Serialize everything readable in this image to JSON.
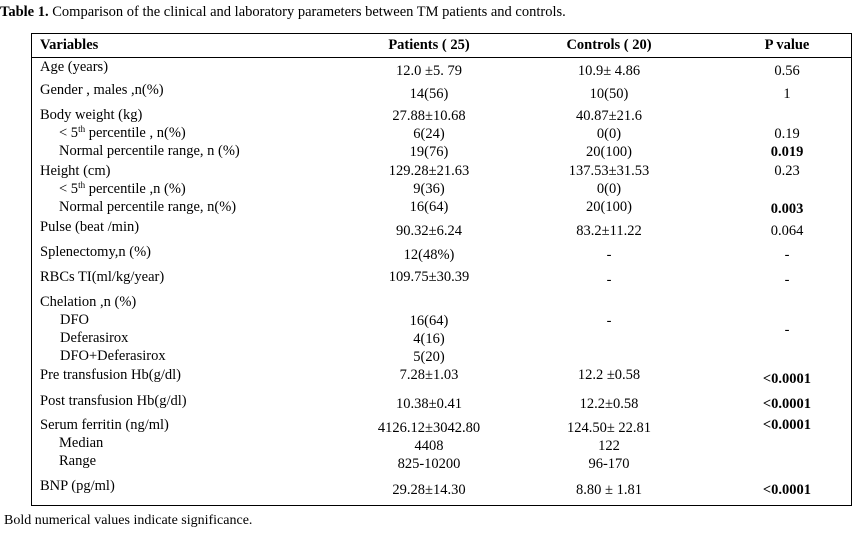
{
  "caption": {
    "label": "Table 1.",
    "text": " Comparison of the clinical and laboratory parameters between TM  patients and controls."
  },
  "headers": {
    "variables": "Variables",
    "patients": "Patients  ( 25)",
    "controls": "Controls ( 20)",
    "pvalue": "P value"
  },
  "rows": {
    "age": {
      "label": "Age (years)",
      "patients": "12.0  ±5. 79",
      "controls": "10.9± 4.86",
      "p": "0.56"
    },
    "gender": {
      "label": "Gender , males ,n(%)",
      "patients": "14(56)",
      "controls": "10(50)",
      "p": "1"
    },
    "bw": {
      "label": "Body weight (kg)",
      "patients": "27.88±10.68",
      "controls": "40.87±21.6"
    },
    "bw_low": {
      "label_pre": "< 5",
      "label_sup": "th",
      "label_post": " percentile , n(%)",
      "patients": "6(24)",
      "controls": "0(0)",
      "p": "0.19"
    },
    "bw_norm": {
      "label": "Normal percentile range, n (%)",
      "patients": "19(76)",
      "controls": "20(100)",
      "p": "0.019"
    },
    "height": {
      "label": "Height (cm)",
      "patients": "129.28±21.63",
      "controls": "137.53±31.53",
      "p": "0.23"
    },
    "ht_low": {
      "label_pre": "< 5",
      "label_sup": "th",
      "label_post": " percentile ,n (%)",
      "patients": "9(36)",
      "controls": "0(0)"
    },
    "ht_norm": {
      "label": "Normal percentile range, n(%)",
      "patients": "16(64)",
      "controls": "20(100)",
      "p": "0.003"
    },
    "pulse": {
      "label": "Pulse (beat /min)",
      "patients": "90.32±6.24",
      "controls": "83.2±11.22",
      "p": "0.064"
    },
    "splen": {
      "label": "Splenectomy,n (%)",
      "patients": "12(48%)",
      "controls": "-",
      "p": "-"
    },
    "rbc": {
      "label": "RBCs TI(ml/kg/year)",
      "patients": "109.75±30.39",
      "controls": "-",
      "p": "-"
    },
    "chel": {
      "label": "Chelation ,n (%)"
    },
    "dfo": {
      "label": "DFO",
      "patients": "16(64)",
      "controls": "-"
    },
    "defer": {
      "label": "Deferasirox",
      "patients": "4(16)",
      "p": "-"
    },
    "combo": {
      "label": "DFO+Deferasirox",
      "patients": "5(20)"
    },
    "prehb": {
      "label": "Pre transfusion Hb(g/dl)",
      "patients": "7.28±1.03",
      "controls": "12.2 ±0.58",
      "p": "<0.0001"
    },
    "posthb": {
      "label": "Post transfusion Hb(g/dl)",
      "patients": "10.38±0.41",
      "controls": "12.2±0.58",
      "p": "<0.0001"
    },
    "ferritin": {
      "label": "Serum ferritin (ng/ml)",
      "patients": "4126.12±3042.80",
      "controls": "124.50± 22.81",
      "p": "<0.0001"
    },
    "median": {
      "label": "Median",
      "patients": "4408",
      "controls": "122"
    },
    "range": {
      "label": "Range",
      "patients": "825-10200",
      "controls": "96-170"
    },
    "bnp": {
      "label": "BNP (pg/ml)",
      "patients": "29.28±14.30",
      "controls": "8.80 ± 1.81",
      "p": "<0.0001"
    }
  },
  "footnote": "Bold numerical values indicate significance."
}
